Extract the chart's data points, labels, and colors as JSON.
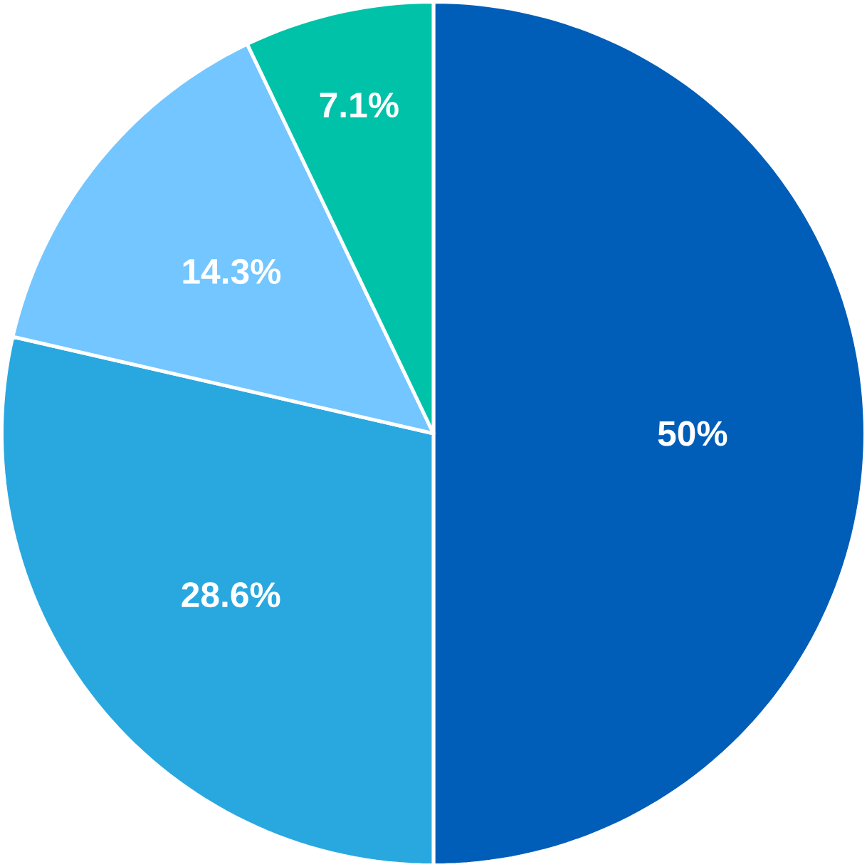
{
  "chart_data": {
    "type": "pie",
    "categories": [
      null,
      null,
      null,
      null
    ],
    "values": [
      50,
      28.6,
      14.3,
      7.1
    ],
    "value_labels": [
      "50%",
      "28.6%",
      "14.3%",
      "7.1%"
    ],
    "colors": [
      "#005eb8",
      "#29a8e0",
      "#73c6ff",
      "#00c2a8"
    ]
  }
}
